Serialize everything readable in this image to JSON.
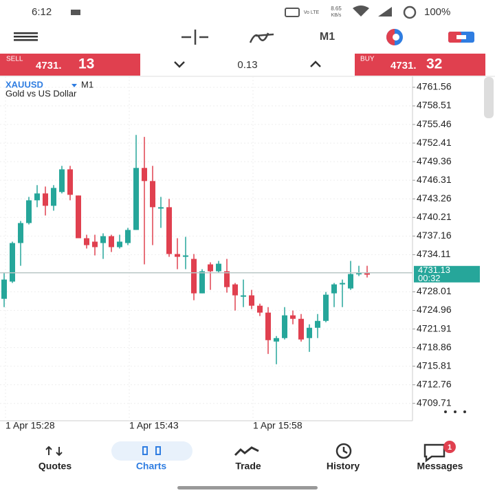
{
  "status_bar": {
    "time": "6:12",
    "network": "Vo LTE",
    "speed": "8.65",
    "speed_unit": "KB/s",
    "battery": "100%"
  },
  "toolbar": {
    "timeframe": "M1"
  },
  "quote_bar": {
    "sell_label": "SELL",
    "sell_main": "4731.",
    "sell_pips": "13",
    "spread": "0.13",
    "buy_label": "BUY",
    "buy_main": "4731.",
    "buy_pips": "32"
  },
  "chart_data": {
    "type": "candlestick",
    "symbol": "XAUUSD",
    "timeframe": "M1",
    "title": "Gold vs US Dollar",
    "categories": [
      "1 Apr 15:28",
      null,
      null,
      null,
      null,
      null,
      null,
      null,
      null,
      null,
      null,
      null,
      null,
      null,
      null,
      "1 Apr 15:43",
      null,
      null,
      null,
      null,
      null,
      null,
      null,
      null,
      null,
      null,
      null,
      null,
      null,
      null,
      "1 Apr 15:58",
      null,
      null,
      null,
      null,
      null,
      null,
      null,
      null,
      null,
      null,
      null,
      null,
      null,
      null
    ],
    "open": [
      4726.86,
      4729.69,
      4736.01,
      4739.29,
      4743.02,
      4744.15,
      4742.12,
      4744.38,
      4748.1,
      4743.81,
      4736.8,
      4736.24,
      4736.01,
      4737.14,
      4735.34,
      4736.01,
      4738.16,
      4748.33,
      4746.18,
      4741.66,
      4741.89,
      4734.21,
      4733.75,
      4733.41,
      4727.76,
      4732.51,
      4731.38,
      4731.38,
      4729.23,
      4727.2,
      4727.43,
      4725.73,
      4724.6,
      4719.85,
      4720.42,
      4724.15,
      4723.58,
      4720.42,
      4722.11,
      4723.24,
      4727.76,
      4729.23,
      4728.56,
      4730.93,
      4731.04
    ],
    "high": [
      4731.15,
      4736.24,
      4739.63,
      4743.58,
      4745.51,
      4745.28,
      4745.51,
      4748.67,
      4748.67,
      4743.81,
      4737.37,
      4737.37,
      4737.6,
      4737.37,
      4737.37,
      4738.5,
      4753.75,
      4753.42,
      4748.67,
      4743.58,
      4743.25,
      4736.8,
      4737.03,
      4734.21,
      4731.72,
      4732.85,
      4733.08,
      4733.41,
      4729.46,
      4730.02,
      4728.33,
      4726.07,
      4725.5,
      4720.76,
      4725.5,
      4724.94,
      4724.37,
      4722.68,
      4724.37,
      4727.99,
      4729.46,
      4730.02,
      4733.08,
      4732.28,
      4732.28
    ],
    "low": [
      4725.5,
      4729.46,
      4732.28,
      4739.06,
      4741.89,
      4740.53,
      4741.32,
      4744.15,
      4743.02,
      4736.8,
      4735.11,
      4733.98,
      4733.41,
      4734.54,
      4735.11,
      4735.67,
      4738.16,
      4732.51,
      4735.67,
      4738.5,
      4733.75,
      4731.72,
      4731.72,
      4726.63,
      4727.76,
      4728.33,
      4731.15,
      4727.88,
      4724.94,
      4725.5,
      4725.17,
      4724.04,
      4717.82,
      4716.13,
      4720.19,
      4722.68,
      4719.85,
      4718.16,
      4720.42,
      4723.02,
      4725.5,
      4725.5,
      4728.33,
      4730.59,
      4730.36
    ],
    "close": [
      4730.02,
      4736.01,
      4739.29,
      4743.02,
      4744.15,
      4742.12,
      4745.05,
      4748.1,
      4743.92,
      4736.8,
      4735.67,
      4735.34,
      4737.14,
      4735.34,
      4736.24,
      4738.16,
      4748.33,
      4746.18,
      4741.89,
      4741.89,
      4734.21,
      4733.75,
      4733.98,
      4727.76,
      4731.38,
      4731.38,
      4732.62,
      4728.78,
      4727.43,
      4727.43,
      4725.73,
      4724.6,
      4720.08,
      4720.42,
      4724.15,
      4723.58,
      4720.19,
      4722.11,
      4723.24,
      4727.54,
      4729.23,
      4729.46,
      4730.93,
      4731.04,
      4730.82
    ],
    "up_color": "#26a69a",
    "down_color": "#e0404f",
    "ylim": [
      4706.86,
      4763.36
    ],
    "yticks": [
      4709.71,
      4712.76,
      4715.81,
      4718.86,
      4721.91,
      4724.96,
      4728.01,
      4734.11,
      4737.16,
      4740.21,
      4743.26,
      4746.31,
      4749.36,
      4752.41,
      4755.46,
      4758.51,
      4761.56
    ],
    "grid": true,
    "current_price": 4731.13,
    "countdown": "00:32"
  },
  "nav": {
    "items": [
      "Quotes",
      "Charts",
      "Trade",
      "History",
      "Messages"
    ],
    "active": 1,
    "badge": "1"
  }
}
